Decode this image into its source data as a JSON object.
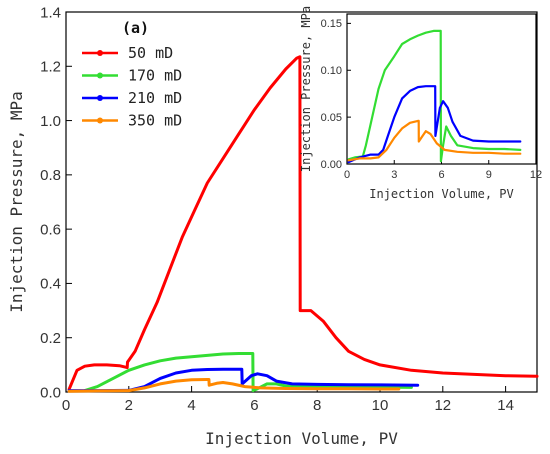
{
  "chart_data": [
    {
      "id": "main",
      "type": "line",
      "panel_label": "(a)",
      "xlabel": "Injection Volume, PV",
      "ylabel": "Injection Pressure, MPa",
      "xlim": [
        0,
        15
      ],
      "ylim": [
        0,
        1.4
      ],
      "xticks": [
        0,
        2,
        4,
        6,
        8,
        10,
        12,
        14
      ],
      "yticks": [
        0.0,
        0.2,
        0.4,
        0.6,
        0.8,
        1.0,
        1.2,
        1.4
      ],
      "ytick_labels": [
        "0.0",
        "0.2",
        "0.4",
        "0.6",
        "0.8",
        "1.0",
        "1.2",
        "1.4"
      ],
      "legend_position": "top-left",
      "series": [
        {
          "name": "50 mD",
          "color": "#ff0000",
          "points": [
            [
              0.1,
              0.01
            ],
            [
              0.35,
              0.08
            ],
            [
              0.6,
              0.095
            ],
            [
              0.9,
              0.1
            ],
            [
              1.3,
              0.1
            ],
            [
              1.7,
              0.097
            ],
            [
              1.95,
              0.09
            ],
            [
              1.96,
              0.11
            ],
            [
              2.2,
              0.15
            ],
            [
              2.5,
              0.23
            ],
            [
              2.9,
              0.33
            ],
            [
              3.3,
              0.45
            ],
            [
              3.7,
              0.57
            ],
            [
              4.1,
              0.67
            ],
            [
              4.5,
              0.77
            ],
            [
              5.0,
              0.86
            ],
            [
              5.5,
              0.95
            ],
            [
              6.0,
              1.04
            ],
            [
              6.5,
              1.12
            ],
            [
              7.0,
              1.19
            ],
            [
              7.35,
              1.23
            ],
            [
              7.45,
              1.235
            ],
            [
              7.46,
              0.3
            ],
            [
              7.8,
              0.3
            ],
            [
              8.2,
              0.26
            ],
            [
              8.6,
              0.2
            ],
            [
              9.0,
              0.15
            ],
            [
              9.5,
              0.12
            ],
            [
              10.0,
              0.1
            ],
            [
              11.0,
              0.08
            ],
            [
              12.0,
              0.07
            ],
            [
              13.0,
              0.065
            ],
            [
              14.0,
              0.06
            ],
            [
              15.0,
              0.058
            ]
          ]
        },
        {
          "name": "170 mD",
          "color": "#33dd33",
          "points": [
            [
              0.6,
              0.005
            ],
            [
              1.0,
              0.02
            ],
            [
              1.5,
              0.05
            ],
            [
              2.0,
              0.08
            ],
            [
              2.5,
              0.1
            ],
            [
              3.0,
              0.115
            ],
            [
              3.5,
              0.125
            ],
            [
              4.0,
              0.13
            ],
            [
              4.5,
              0.135
            ],
            [
              5.0,
              0.14
            ],
            [
              5.5,
              0.142
            ],
            [
              5.95,
              0.142
            ],
            [
              5.96,
              0.005
            ],
            [
              6.1,
              0.012
            ],
            [
              6.4,
              0.03
            ],
            [
              6.7,
              0.03
            ],
            [
              7.0,
              0.022
            ],
            [
              8.0,
              0.02
            ],
            [
              10.0,
              0.018
            ],
            [
              11.0,
              0.017
            ]
          ]
        },
        {
          "name": "210 mD",
          "color": "#0000ff",
          "points": [
            [
              0.1,
              0.005
            ],
            [
              1.0,
              0.005
            ],
            [
              2.0,
              0.006
            ],
            [
              2.5,
              0.02
            ],
            [
              3.0,
              0.05
            ],
            [
              3.5,
              0.07
            ],
            [
              4.0,
              0.08
            ],
            [
              4.5,
              0.083
            ],
            [
              5.0,
              0.084
            ],
            [
              5.5,
              0.084
            ],
            [
              5.6,
              0.084
            ],
            [
              5.61,
              0.03
            ],
            [
              5.9,
              0.06
            ],
            [
              6.1,
              0.067
            ],
            [
              6.4,
              0.06
            ],
            [
              6.7,
              0.04
            ],
            [
              7.2,
              0.03
            ],
            [
              8.0,
              0.028
            ],
            [
              9.0,
              0.027
            ],
            [
              10.0,
              0.026
            ],
            [
              11.2,
              0.025
            ]
          ]
        },
        {
          "name": "350 mD",
          "color": "#ff8800",
          "points": [
            [
              0.1,
              0.003
            ],
            [
              1.0,
              0.004
            ],
            [
              2.0,
              0.005
            ],
            [
              2.5,
              0.015
            ],
            [
              3.0,
              0.03
            ],
            [
              3.5,
              0.04
            ],
            [
              4.0,
              0.045
            ],
            [
              4.5,
              0.046
            ],
            [
              4.55,
              0.046
            ],
            [
              4.56,
              0.025
            ],
            [
              4.8,
              0.032
            ],
            [
              5.0,
              0.035
            ],
            [
              5.3,
              0.03
            ],
            [
              5.7,
              0.02
            ],
            [
              6.2,
              0.015
            ],
            [
              7.0,
              0.013
            ],
            [
              8.0,
              0.012
            ],
            [
              9.0,
              0.012
            ],
            [
              10.0,
              0.011
            ],
            [
              10.6,
              0.011
            ]
          ]
        }
      ]
    },
    {
      "id": "inset",
      "type": "line",
      "xlabel": "Injection Volume, PV",
      "ylabel": "Injection Pressure, MPa",
      "xlim": [
        0,
        12
      ],
      "ylim": [
        0,
        0.16
      ],
      "xticks": [
        0,
        3,
        6,
        9,
        12
      ],
      "yticks": [
        0.0,
        0.05,
        0.1,
        0.15
      ],
      "ytick_labels": [
        "0.00",
        "0.05",
        "0.10",
        "0.15"
      ],
      "series": [
        {
          "name": "170 mD",
          "color": "#33dd33",
          "points": [
            [
              0.1,
              0.005
            ],
            [
              0.5,
              0.007
            ],
            [
              1.0,
              0.008
            ],
            [
              1.2,
              0.02
            ],
            [
              1.6,
              0.05
            ],
            [
              2.0,
              0.08
            ],
            [
              2.4,
              0.1
            ],
            [
              3.0,
              0.115
            ],
            [
              3.5,
              0.128
            ],
            [
              4.0,
              0.133
            ],
            [
              4.5,
              0.137
            ],
            [
              5.0,
              0.14
            ],
            [
              5.5,
              0.142
            ],
            [
              5.95,
              0.142
            ],
            [
              5.96,
              0.003
            ],
            [
              6.1,
              0.02
            ],
            [
              6.3,
              0.04
            ],
            [
              6.6,
              0.03
            ],
            [
              7.0,
              0.02
            ],
            [
              8.0,
              0.017
            ],
            [
              9.0,
              0.016
            ],
            [
              10.0,
              0.016
            ],
            [
              11.0,
              0.015
            ]
          ]
        },
        {
          "name": "210 mD",
          "color": "#0000ff",
          "points": [
            [
              0.1,
              0.002
            ],
            [
              0.8,
              0.007
            ],
            [
              1.5,
              0.01
            ],
            [
              2.0,
              0.01
            ],
            [
              2.3,
              0.015
            ],
            [
              2.6,
              0.03
            ],
            [
              3.0,
              0.05
            ],
            [
              3.5,
              0.07
            ],
            [
              4.0,
              0.078
            ],
            [
              4.5,
              0.082
            ],
            [
              5.0,
              0.083
            ],
            [
              5.5,
              0.083
            ],
            [
              5.6,
              0.083
            ],
            [
              5.61,
              0.03
            ],
            [
              5.9,
              0.06
            ],
            [
              6.1,
              0.067
            ],
            [
              6.4,
              0.06
            ],
            [
              6.7,
              0.045
            ],
            [
              7.2,
              0.03
            ],
            [
              8.0,
              0.025
            ],
            [
              9.0,
              0.024
            ],
            [
              10.0,
              0.024
            ],
            [
              11.0,
              0.024
            ]
          ]
        },
        {
          "name": "350 mD",
          "color": "#ff8800",
          "points": [
            [
              0.1,
              0.004
            ],
            [
              0.8,
              0.006
            ],
            [
              1.5,
              0.006
            ],
            [
              2.0,
              0.007
            ],
            [
              2.5,
              0.015
            ],
            [
              3.0,
              0.028
            ],
            [
              3.5,
              0.038
            ],
            [
              4.0,
              0.044
            ],
            [
              4.5,
              0.046
            ],
            [
              4.55,
              0.046
            ],
            [
              4.56,
              0.024
            ],
            [
              4.8,
              0.03
            ],
            [
              5.0,
              0.035
            ],
            [
              5.3,
              0.032
            ],
            [
              5.7,
              0.022
            ],
            [
              6.2,
              0.015
            ],
            [
              7.0,
              0.013
            ],
            [
              8.0,
              0.012
            ],
            [
              9.0,
              0.012
            ],
            [
              10.0,
              0.011
            ],
            [
              11.0,
              0.011
            ]
          ]
        }
      ]
    }
  ]
}
